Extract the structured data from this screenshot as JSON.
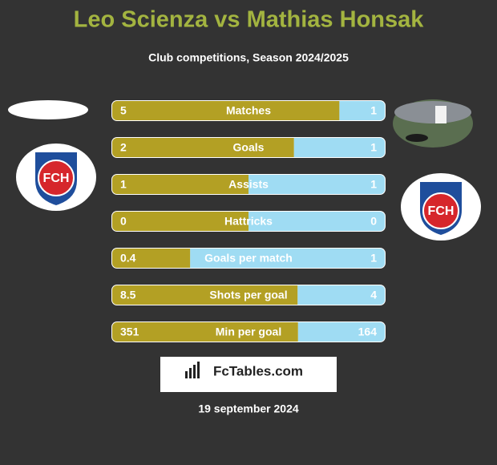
{
  "header": {
    "title": "Leo Scienza vs Mathias Honsak",
    "subtitle": "Club competitions, Season 2024/2025"
  },
  "badges": {
    "left": "FCH",
    "right": "FCH"
  },
  "rows": [
    {
      "label": "Matches",
      "left": 5,
      "right": 1
    },
    {
      "label": "Goals",
      "left": 2,
      "right": 1
    },
    {
      "label": "Assists",
      "left": 1,
      "right": 1
    },
    {
      "label": "Hattricks",
      "left": 0,
      "right": 0
    },
    {
      "label": "Goals per match",
      "left": 0.4,
      "right": 1
    },
    {
      "label": "Shots per goal",
      "left": 8.5,
      "right": 4
    },
    {
      "label": "Min per goal",
      "left": 351,
      "right": 164
    }
  ],
  "footer": {
    "brand": "FcTables.com",
    "date": "19 september 2024"
  }
}
